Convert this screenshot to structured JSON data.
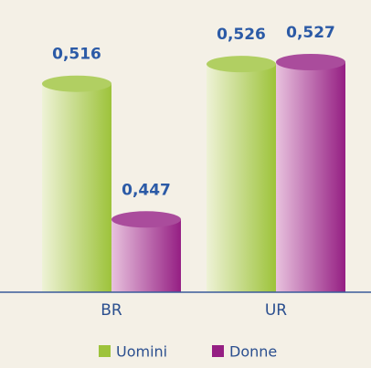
{
  "chart_data": {
    "type": "cylinder_bar",
    "categories": [
      "BR",
      "UR"
    ],
    "series": [
      {
        "name": "Uomini",
        "color": "#9dc33b",
        "values": [
          0.516,
          0.526
        ],
        "value_labels": [
          "0,516",
          "0,526"
        ]
      },
      {
        "name": "Donne",
        "color": "#951f83",
        "values": [
          0.447,
          0.527
        ],
        "value_labels": [
          "0,447",
          "0,527"
        ]
      }
    ],
    "ylim": [
      0.41,
      0.54
    ],
    "legend": "bottom"
  }
}
